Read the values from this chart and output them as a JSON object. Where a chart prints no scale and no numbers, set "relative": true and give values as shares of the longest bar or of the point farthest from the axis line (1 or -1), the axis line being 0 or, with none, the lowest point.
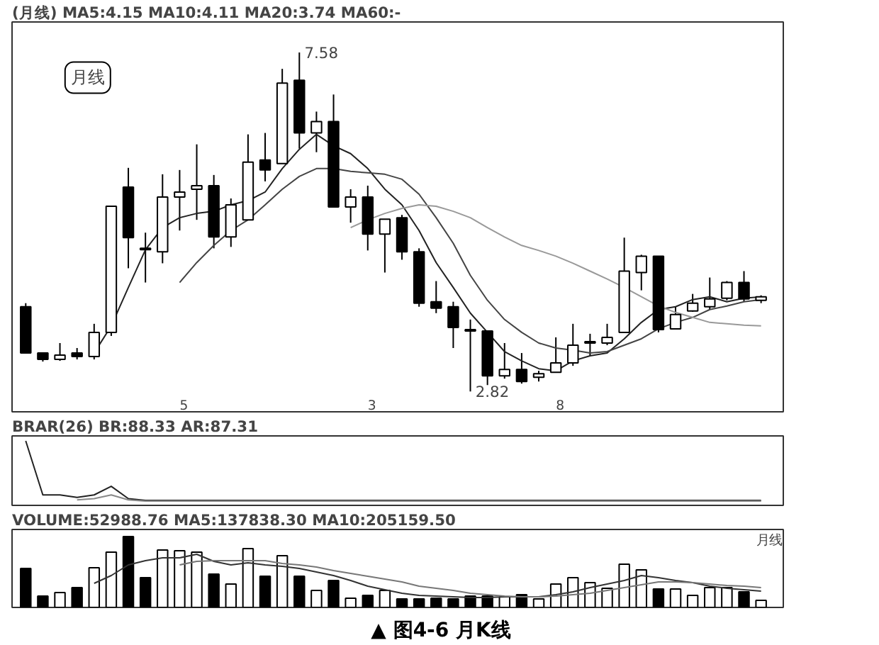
{
  "chart_data": [
    {
      "type": "candlestick",
      "title": "(月线) MA5:4.15 MA10:4.11 MA20:3.74 MA60:-",
      "tick_labels": false,
      "categories": [
        null,
        null,
        null,
        null,
        null,
        null,
        null,
        null,
        null,
        null,
        null,
        null,
        null,
        null,
        null,
        null,
        null,
        null,
        null,
        null,
        null,
        null,
        null,
        null,
        null,
        null,
        null,
        null,
        null,
        null,
        null,
        null,
        null,
        null,
        null,
        null,
        null,
        null,
        null,
        null,
        null,
        null,
        null,
        null
      ],
      "ohlc": [
        [
          4.01,
          4.06,
          3.36,
          3.36
        ],
        [
          3.36,
          3.36,
          3.24,
          3.27
        ],
        [
          3.27,
          3.5,
          3.25,
          3.33
        ],
        [
          3.36,
          3.43,
          3.27,
          3.31
        ],
        [
          3.31,
          3.77,
          3.27,
          3.65
        ],
        [
          3.65,
          5.42,
          3.6,
          5.42
        ],
        [
          5.69,
          5.96,
          4.55,
          4.98
        ],
        [
          4.83,
          5.05,
          4.35,
          4.81
        ],
        [
          4.78,
          5.87,
          4.62,
          5.55
        ],
        [
          5.55,
          5.93,
          5.08,
          5.62
        ],
        [
          5.66,
          6.29,
          5.23,
          5.71
        ],
        [
          5.71,
          5.86,
          4.83,
          4.99
        ],
        [
          4.99,
          5.53,
          4.85,
          5.44
        ],
        [
          5.23,
          6.43,
          5.23,
          6.04
        ],
        [
          6.07,
          6.45,
          5.77,
          5.93
        ],
        [
          6.02,
          7.35,
          6.02,
          7.15
        ],
        [
          7.19,
          7.58,
          6.23,
          6.45
        ],
        [
          6.45,
          6.75,
          6.18,
          6.61
        ],
        [
          6.61,
          6.99,
          5.41,
          5.41
        ],
        [
          5.41,
          5.66,
          5.19,
          5.55
        ],
        [
          5.55,
          5.71,
          4.8,
          5.03
        ],
        [
          5.03,
          5.24,
          4.49,
          5.24
        ],
        [
          5.26,
          5.3,
          4.67,
          4.78
        ],
        [
          4.78,
          4.83,
          4.01,
          4.06
        ],
        [
          4.08,
          4.37,
          3.92,
          3.99
        ],
        [
          4.01,
          4.08,
          3.43,
          3.72
        ],
        [
          3.69,
          3.83,
          2.82,
          3.67
        ],
        [
          3.67,
          3.67,
          2.91,
          3.04
        ],
        [
          3.04,
          3.5,
          3.0,
          3.13
        ],
        [
          3.13,
          3.36,
          2.93,
          2.96
        ],
        [
          3.02,
          3.11,
          2.96,
          3.07
        ],
        [
          3.09,
          3.58,
          3.09,
          3.22
        ],
        [
          3.22,
          3.77,
          3.18,
          3.47
        ],
        [
          3.5,
          3.63,
          3.32,
          3.52
        ],
        [
          3.5,
          3.77,
          3.47,
          3.58
        ],
        [
          3.65,
          4.98,
          3.65,
          4.51
        ],
        [
          4.49,
          4.74,
          4.24,
          4.72
        ],
        [
          4.72,
          4.72,
          3.65,
          3.69
        ],
        [
          3.7,
          4.01,
          3.69,
          3.9
        ],
        [
          3.95,
          4.19,
          3.94,
          4.06
        ],
        [
          4.01,
          4.42,
          3.97,
          4.12
        ],
        [
          4.13,
          4.37,
          4.1,
          4.35
        ],
        [
          4.35,
          4.51,
          4.08,
          4.12
        ],
        [
          4.1,
          4.17,
          4.06,
          4.15
        ]
      ],
      "series": [
        {
          "type": "line",
          "color": "#222222",
          "values": [
            null,
            null,
            null,
            null,
            3.36,
            3.74,
            4.28,
            4.81,
            5.12,
            5.26,
            5.32,
            5.35,
            5.44,
            5.5,
            5.62,
            5.95,
            6.22,
            6.43,
            6.27,
            6.16,
            5.95,
            5.66,
            5.44,
            5.08,
            4.63,
            4.28,
            3.92,
            3.65,
            3.38,
            3.25,
            3.14,
            3.11,
            3.25,
            3.32,
            3.36,
            3.56,
            3.79,
            3.97,
            4.01,
            4.11,
            4.15,
            4.08,
            4.13,
            4.15
          ]
        },
        {
          "type": "line",
          "color": "#444444",
          "values": [
            null,
            null,
            null,
            null,
            null,
            null,
            null,
            null,
            null,
            4.35,
            4.63,
            4.87,
            5.08,
            5.23,
            5.44,
            5.66,
            5.84,
            5.95,
            5.95,
            5.91,
            5.89,
            5.87,
            5.8,
            5.59,
            5.26,
            4.9,
            4.45,
            4.1,
            3.83,
            3.65,
            3.5,
            3.43,
            3.4,
            3.36,
            3.38,
            3.47,
            3.56,
            3.7,
            3.79,
            3.86,
            3.97,
            4.02,
            4.08,
            4.11
          ]
        },
        {
          "type": "line",
          "color": "#999999",
          "values": [
            null,
            null,
            null,
            null,
            null,
            null,
            null,
            null,
            null,
            null,
            null,
            null,
            null,
            null,
            null,
            null,
            null,
            null,
            null,
            5.12,
            5.23,
            5.32,
            5.39,
            5.44,
            5.42,
            5.35,
            5.26,
            5.12,
            4.99,
            4.87,
            4.8,
            4.72,
            4.62,
            4.51,
            4.4,
            4.28,
            4.15,
            4.02,
            3.93,
            3.86,
            3.79,
            3.77,
            3.75,
            3.74
          ]
        }
      ],
      "annotations": [
        "月线",
        "7.58",
        "2.82",
        "5",
        "3",
        "8"
      ]
    },
    {
      "type": "line",
      "title": "BRAR(26) BR:88.33 AR:87.31",
      "relative": true,
      "tick_labels": false,
      "categories": [
        null,
        null,
        null,
        null,
        null,
        null,
        null,
        null,
        null,
        null,
        null,
        null,
        null,
        null,
        null,
        null,
        null,
        null,
        null,
        null,
        null,
        null,
        null,
        null,
        null,
        null,
        null,
        null,
        null,
        null,
        null,
        null,
        null,
        null,
        null,
        null,
        null,
        null,
        null,
        null,
        null,
        null,
        null,
        null
      ],
      "series": [
        {
          "color": "#222222",
          "values": [
            1.0,
            0.12,
            0.12,
            0.08,
            0.12,
            0.26,
            0.06,
            0.03,
            0.03,
            0.03,
            0.03,
            0.03,
            0.03,
            0.03,
            0.03,
            0.03,
            0.03,
            0.03,
            0.03,
            0.03,
            0.03,
            0.03,
            0.03,
            0.03,
            0.03,
            0.03,
            0.03,
            0.03,
            0.03,
            0.03,
            0.03,
            0.03,
            0.03,
            0.03,
            0.03,
            0.03,
            0.03,
            0.03,
            0.03,
            0.03,
            0.03,
            0.03,
            0.03,
            0.03
          ]
        },
        {
          "color": "#888888",
          "values": [
            null,
            null,
            null,
            0.04,
            0.06,
            0.12,
            0.04,
            0.02,
            0.02,
            0.02,
            0.02,
            0.02,
            0.02,
            0.02,
            0.02,
            0.02,
            0.02,
            0.02,
            0.02,
            0.02,
            0.02,
            0.02,
            0.02,
            0.02,
            0.02,
            0.02,
            0.02,
            0.02,
            0.02,
            0.02,
            0.02,
            0.02,
            0.02,
            0.02,
            0.02,
            0.02,
            0.02,
            0.02,
            0.02,
            0.02,
            0.02,
            0.02,
            0.02,
            0.02
          ]
        }
      ]
    },
    {
      "type": "bar",
      "title": "VOLUME:52988.76 MA5:137838.30 MA10:205159.50",
      "relative": true,
      "tick_labels": false,
      "categories": [
        null,
        null,
        null,
        null,
        null,
        null,
        null,
        null,
        null,
        null,
        null,
        null,
        null,
        null,
        null,
        null,
        null,
        null,
        null,
        null,
        null,
        null,
        null,
        null,
        null,
        null,
        null,
        null,
        null,
        null,
        null,
        null,
        null,
        null,
        null,
        null,
        null,
        null,
        null,
        null,
        null,
        null,
        null,
        null
      ],
      "values": [
        0.55,
        0.16,
        0.21,
        0.28,
        0.56,
        0.78,
        1.0,
        0.42,
        0.81,
        0.8,
        0.78,
        0.47,
        0.33,
        0.83,
        0.44,
        0.73,
        0.44,
        0.24,
        0.38,
        0.13,
        0.17,
        0.24,
        0.12,
        0.12,
        0.13,
        0.12,
        0.16,
        0.16,
        0.15,
        0.18,
        0.12,
        0.33,
        0.42,
        0.35,
        0.27,
        0.61,
        0.53,
        0.26,
        0.26,
        0.17,
        0.28,
        0.28,
        0.22,
        0.1
      ],
      "colors": [
        "#000000",
        "#000000",
        "#ffffff",
        "#000000",
        "#ffffff",
        "#ffffff",
        "#000000",
        "#000000",
        "#ffffff",
        "#ffffff",
        "#ffffff",
        "#000000",
        "#ffffff",
        "#ffffff",
        "#000000",
        "#ffffff",
        "#000000",
        "#ffffff",
        "#000000",
        "#ffffff",
        "#000000",
        "#ffffff",
        "#000000",
        "#000000",
        "#000000",
        "#000000",
        "#000000",
        "#000000",
        "#ffffff",
        "#000000",
        "#ffffff",
        "#ffffff",
        "#ffffff",
        "#ffffff",
        "#ffffff",
        "#ffffff",
        "#ffffff",
        "#000000",
        "#ffffff",
        "#ffffff",
        "#ffffff",
        "#ffffff",
        "#000000",
        "#ffffff"
      ],
      "series": [
        {
          "type": "line",
          "color": "#333333",
          "values": [
            null,
            null,
            null,
            null,
            0.34,
            0.45,
            0.6,
            0.66,
            0.7,
            0.7,
            0.75,
            0.65,
            0.6,
            0.63,
            0.6,
            0.58,
            0.55,
            0.5,
            0.45,
            0.38,
            0.3,
            0.25,
            0.2,
            0.17,
            0.16,
            0.15,
            0.14,
            0.14,
            0.15,
            0.15,
            0.15,
            0.18,
            0.22,
            0.28,
            0.33,
            0.38,
            0.45,
            0.42,
            0.38,
            0.35,
            0.3,
            0.27,
            0.25,
            0.23
          ]
        },
        {
          "type": "line",
          "color": "#777777",
          "values": [
            null,
            null,
            null,
            null,
            null,
            null,
            null,
            null,
            null,
            0.6,
            0.65,
            0.66,
            0.66,
            0.66,
            0.66,
            0.62,
            0.6,
            0.57,
            0.52,
            0.48,
            0.44,
            0.4,
            0.36,
            0.3,
            0.27,
            0.24,
            0.2,
            0.18,
            0.16,
            0.15,
            0.15,
            0.16,
            0.18,
            0.2,
            0.24,
            0.28,
            0.32,
            0.36,
            0.36,
            0.35,
            0.33,
            0.31,
            0.3,
            0.28
          ]
        }
      ],
      "annotations": [
        "月线",
        "▲ 图4-6 月K线"
      ]
    }
  ]
}
